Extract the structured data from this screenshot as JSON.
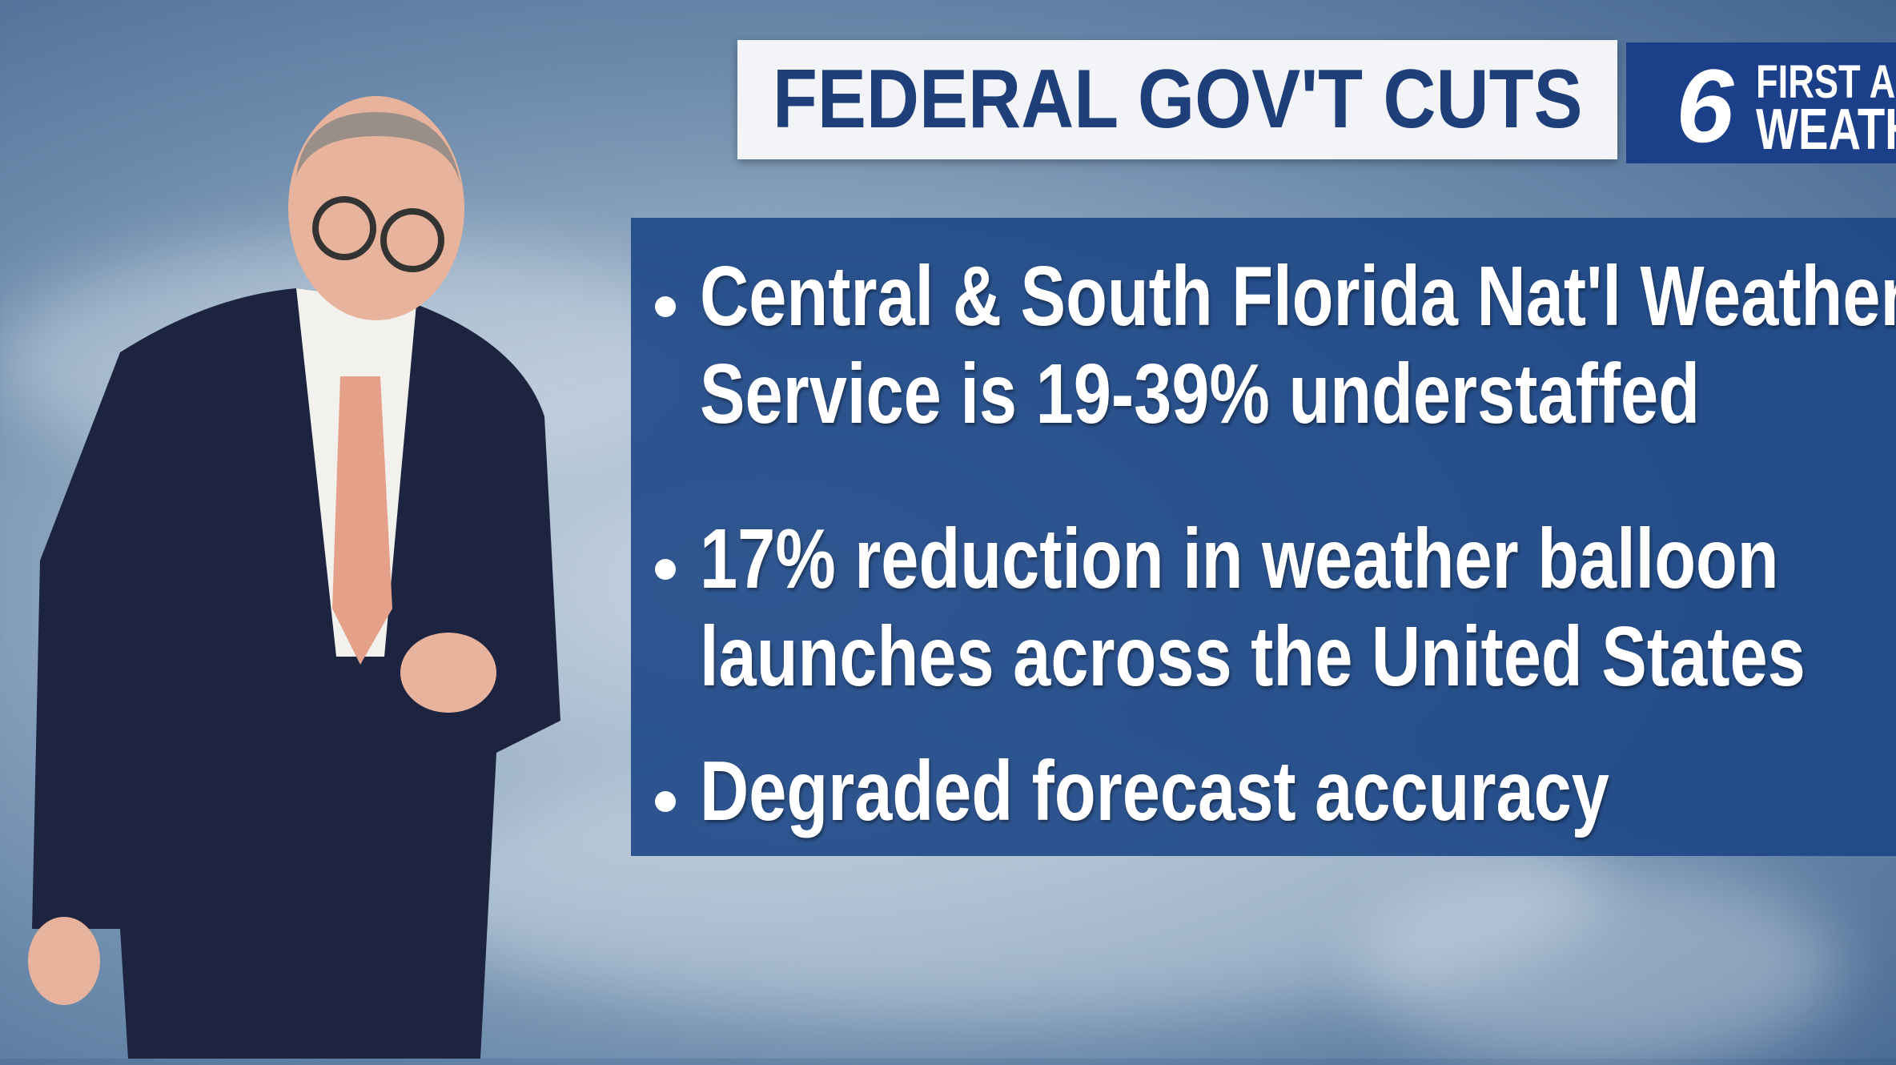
{
  "header": {
    "title": "FEDERAL GOV'T CUTS",
    "logo": {
      "number": "6",
      "line1": "FIRST AL",
      "line2": "WEATH"
    }
  },
  "bullets": [
    {
      "lines": [
        "Central & South Florida Nat'l Weather",
        "Service is 19-39% understaffed"
      ]
    },
    {
      "lines": [
        "17% reduction in weather balloon",
        "launches across the United States"
      ]
    },
    {
      "lines": [
        "Degraded forecast accuracy"
      ]
    }
  ]
}
